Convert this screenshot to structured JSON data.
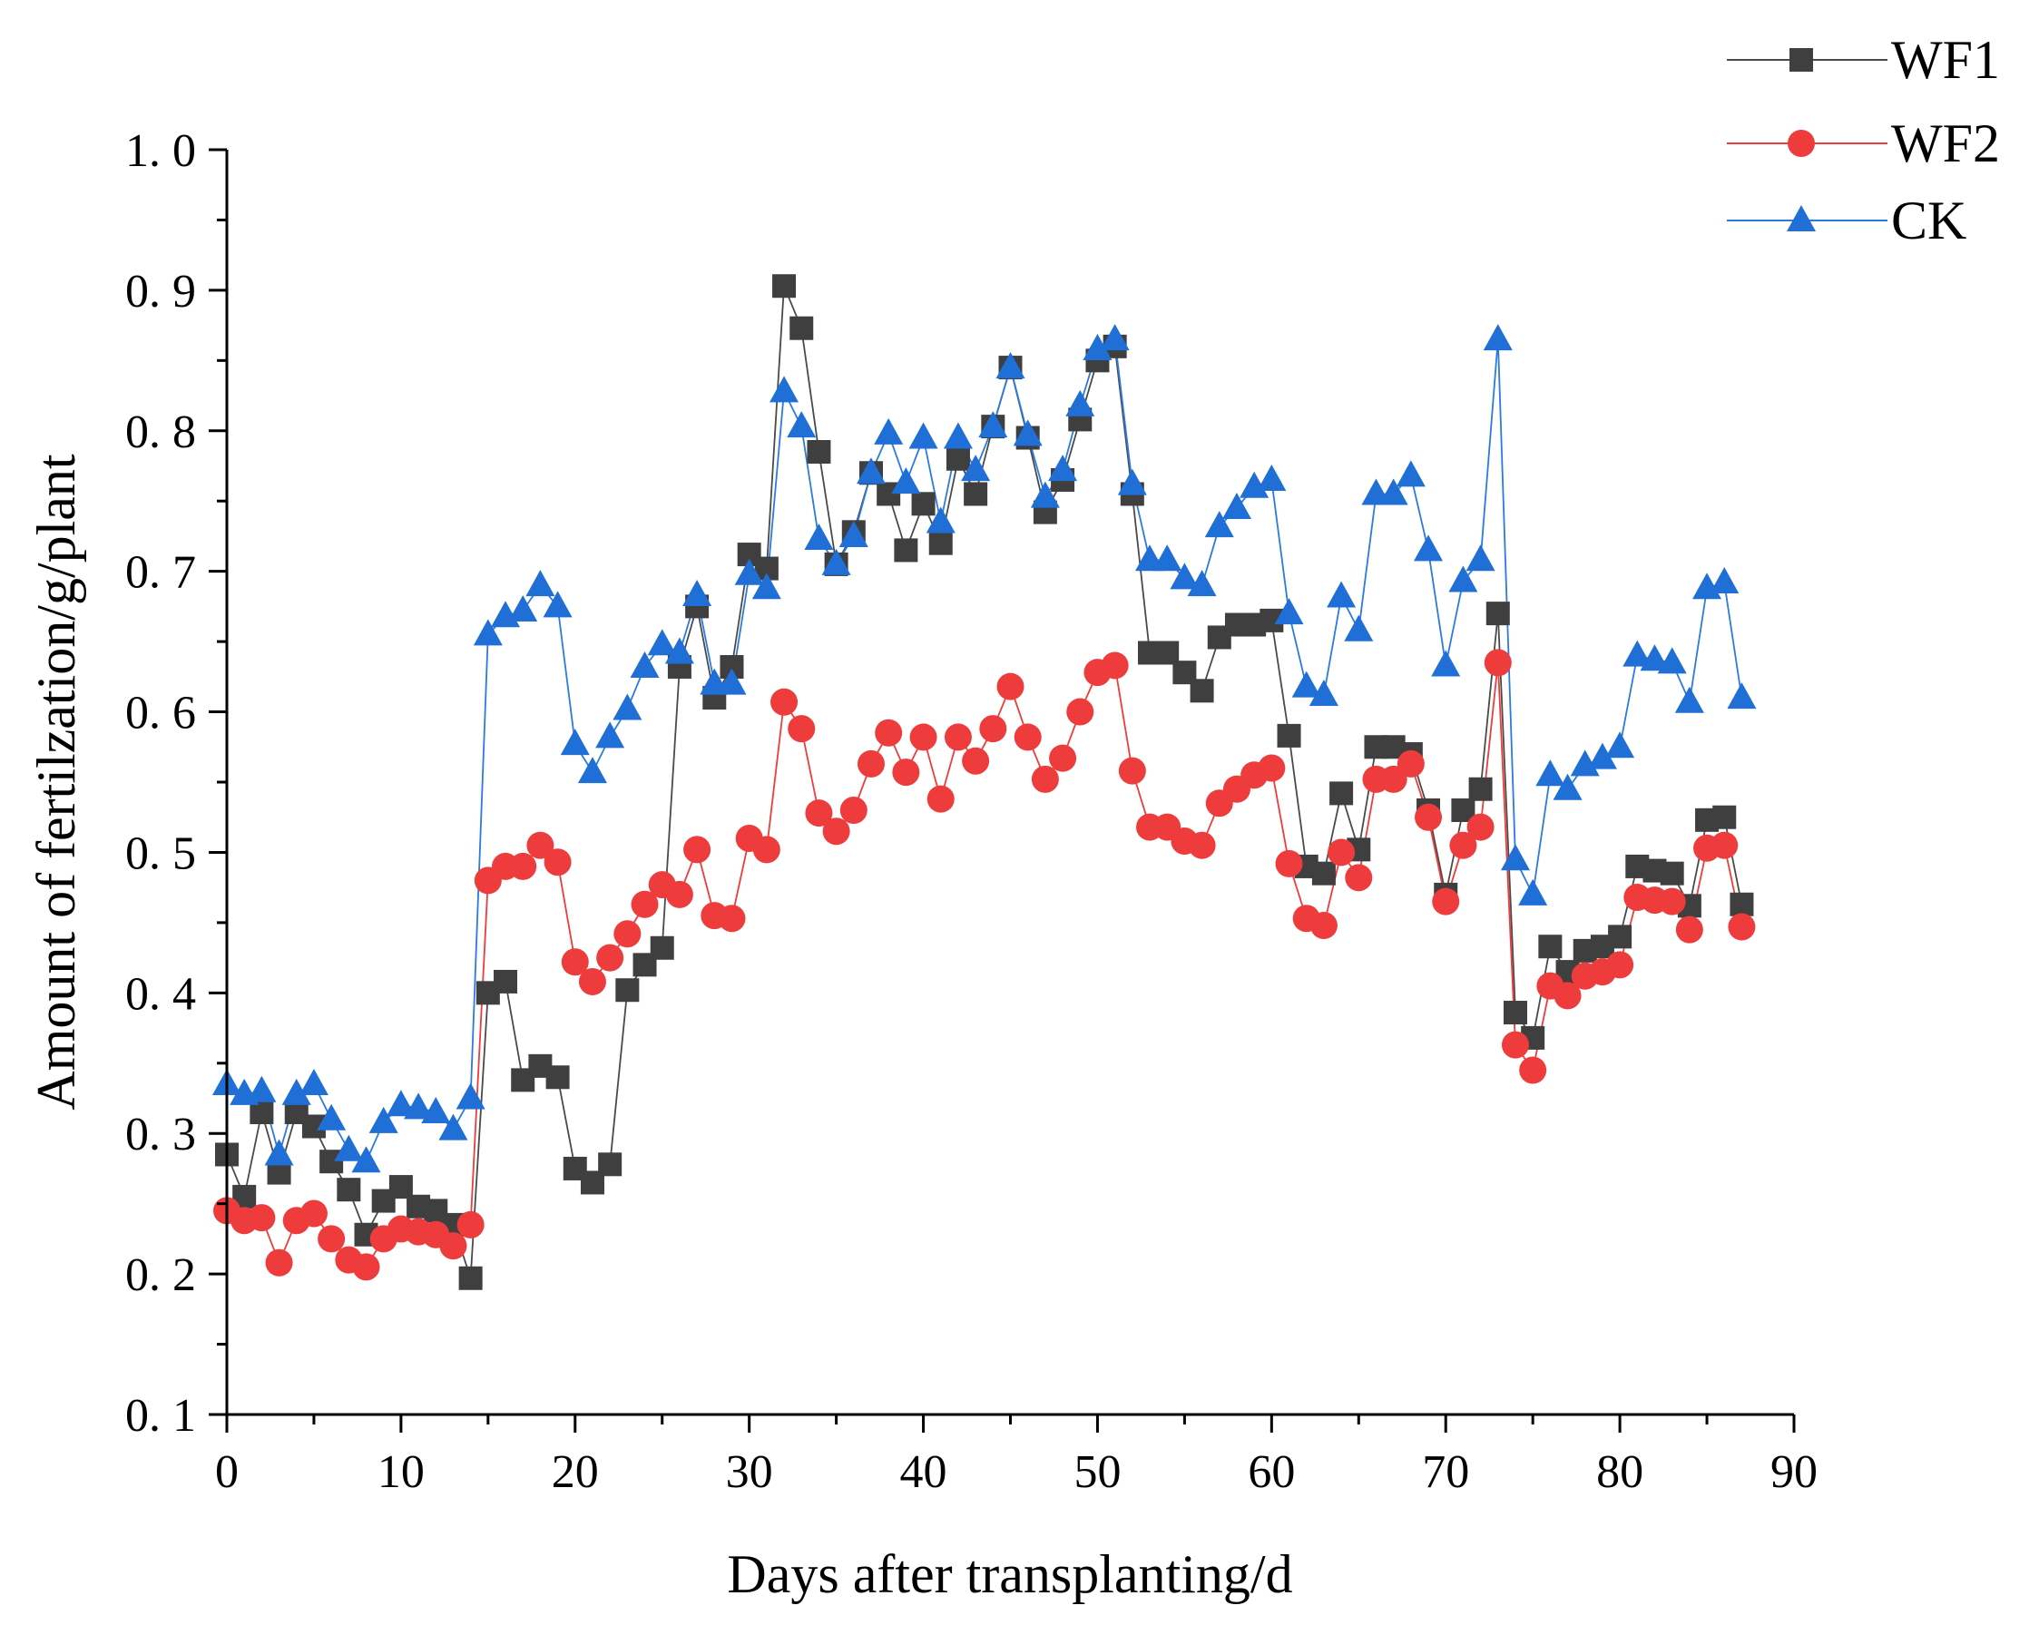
{
  "chart_data": {
    "type": "line",
    "title": "",
    "xlabel": "Days after transplanting/d",
    "ylabel": "Amount of fertilzation/g/plant",
    "xlim": [
      0,
      90
    ],
    "ylim": [
      0.1,
      1.0
    ],
    "xticks": [
      0,
      10,
      20,
      30,
      40,
      50,
      60,
      70,
      80,
      90
    ],
    "xtick_labels": [
      "0",
      "10",
      "20",
      "30",
      "40",
      "50",
      "60",
      "70",
      "80",
      "90"
    ],
    "yticks": [
      0.1,
      0.2,
      0.3,
      0.4,
      0.5,
      0.6,
      0.7,
      0.8,
      0.9,
      1.0
    ],
    "ytick_labels": [
      "0. 1",
      "0. 2",
      "0. 3",
      "0. 4",
      "0. 5",
      "0. 6",
      "0. 7",
      "0. 8",
      "0. 9",
      "1. 0"
    ],
    "grid": false,
    "legend_position": "top-right",
    "x": [
      0,
      1,
      2,
      3,
      4,
      5,
      6,
      7,
      8,
      9,
      10,
      11,
      12,
      13,
      14,
      15,
      16,
      17,
      18,
      19,
      20,
      21,
      22,
      23,
      24,
      25,
      26,
      27,
      28,
      29,
      30,
      31,
      32,
      33,
      34,
      35,
      36,
      37,
      38,
      39,
      40,
      41,
      42,
      43,
      44,
      45,
      46,
      47,
      48,
      49,
      50,
      51,
      52,
      53,
      54,
      55,
      56,
      57,
      58,
      59,
      60,
      61,
      62,
      63,
      64,
      65,
      66,
      67,
      68,
      69,
      70,
      71,
      72,
      73,
      74,
      75,
      76,
      77,
      78,
      79,
      80,
      81,
      82,
      83,
      84,
      85,
      86,
      87
    ],
    "series": [
      {
        "name": "WF1",
        "marker": "square",
        "color": "#3f3f3f",
        "line_color": "#4a4a4a",
        "values": [
          0.285,
          0.255,
          0.315,
          0.272,
          0.315,
          0.305,
          0.28,
          0.26,
          0.228,
          0.252,
          0.262,
          0.248,
          0.245,
          0.235,
          0.197,
          0.4,
          0.408,
          0.338,
          0.348,
          0.34,
          0.275,
          0.265,
          0.278,
          0.402,
          0.42,
          0.432,
          0.632,
          0.675,
          0.61,
          0.632,
          0.712,
          0.702,
          0.903,
          0.873,
          0.785,
          0.705,
          0.728,
          0.77,
          0.755,
          0.715,
          0.748,
          0.72,
          0.78,
          0.755,
          0.803,
          0.845,
          0.795,
          0.742,
          0.765,
          0.808,
          0.85,
          0.86,
          0.755,
          0.642,
          0.642,
          0.628,
          0.615,
          0.653,
          0.662,
          0.662,
          0.665,
          0.583,
          0.49,
          0.485,
          0.542,
          0.502,
          0.575,
          0.575,
          0.57,
          0.53,
          0.47,
          0.53,
          0.545,
          0.67,
          0.386,
          0.368,
          0.433,
          0.415,
          0.43,
          0.433,
          0.44,
          0.49,
          0.487,
          0.485,
          0.462,
          0.523,
          0.525,
          0.463
        ]
      },
      {
        "name": "WF2",
        "marker": "circle",
        "color": "#ee3b3b",
        "line_color": "#ee3b3b",
        "values": [
          0.245,
          0.238,
          0.24,
          0.208,
          0.238,
          0.243,
          0.225,
          0.21,
          0.205,
          0.225,
          0.232,
          0.23,
          0.228,
          0.22,
          0.235,
          0.48,
          0.49,
          0.49,
          0.505,
          0.493,
          0.422,
          0.408,
          0.425,
          0.442,
          0.463,
          0.477,
          0.47,
          0.502,
          0.455,
          0.453,
          0.51,
          0.502,
          0.607,
          0.588,
          0.528,
          0.515,
          0.53,
          0.563,
          0.585,
          0.557,
          0.582,
          0.538,
          0.582,
          0.565,
          0.588,
          0.618,
          0.582,
          0.552,
          0.567,
          0.6,
          0.628,
          0.633,
          0.558,
          0.518,
          0.518,
          0.508,
          0.505,
          0.535,
          0.545,
          0.555,
          0.56,
          0.492,
          0.453,
          0.448,
          0.5,
          0.482,
          0.552,
          0.552,
          0.563,
          0.525,
          0.465,
          0.505,
          0.518,
          0.635,
          0.363,
          0.345,
          0.405,
          0.398,
          0.412,
          0.415,
          0.42,
          0.468,
          0.466,
          0.465,
          0.445,
          0.503,
          0.505,
          0.447
        ]
      },
      {
        "name": "CK",
        "marker": "triangle",
        "color": "#1f6fd6",
        "line_color": "#2a7ae2",
        "values": [
          0.335,
          0.328,
          0.33,
          0.285,
          0.328,
          0.335,
          0.31,
          0.288,
          0.28,
          0.308,
          0.32,
          0.318,
          0.315,
          0.303,
          0.325,
          0.655,
          0.668,
          0.672,
          0.69,
          0.675,
          0.577,
          0.557,
          0.582,
          0.602,
          0.632,
          0.648,
          0.642,
          0.683,
          0.62,
          0.62,
          0.698,
          0.688,
          0.828,
          0.803,
          0.723,
          0.705,
          0.725,
          0.77,
          0.798,
          0.763,
          0.795,
          0.735,
          0.795,
          0.772,
          0.803,
          0.845,
          0.797,
          0.753,
          0.772,
          0.818,
          0.858,
          0.865,
          0.762,
          0.708,
          0.708,
          0.695,
          0.69,
          0.732,
          0.745,
          0.76,
          0.765,
          0.67,
          0.618,
          0.612,
          0.682,
          0.658,
          0.755,
          0.755,
          0.768,
          0.715,
          0.633,
          0.693,
          0.708,
          0.865,
          0.495,
          0.47,
          0.555,
          0.545,
          0.562,
          0.567,
          0.575,
          0.64,
          0.637,
          0.635,
          0.607,
          0.688,
          0.692,
          0.61
        ]
      }
    ]
  }
}
